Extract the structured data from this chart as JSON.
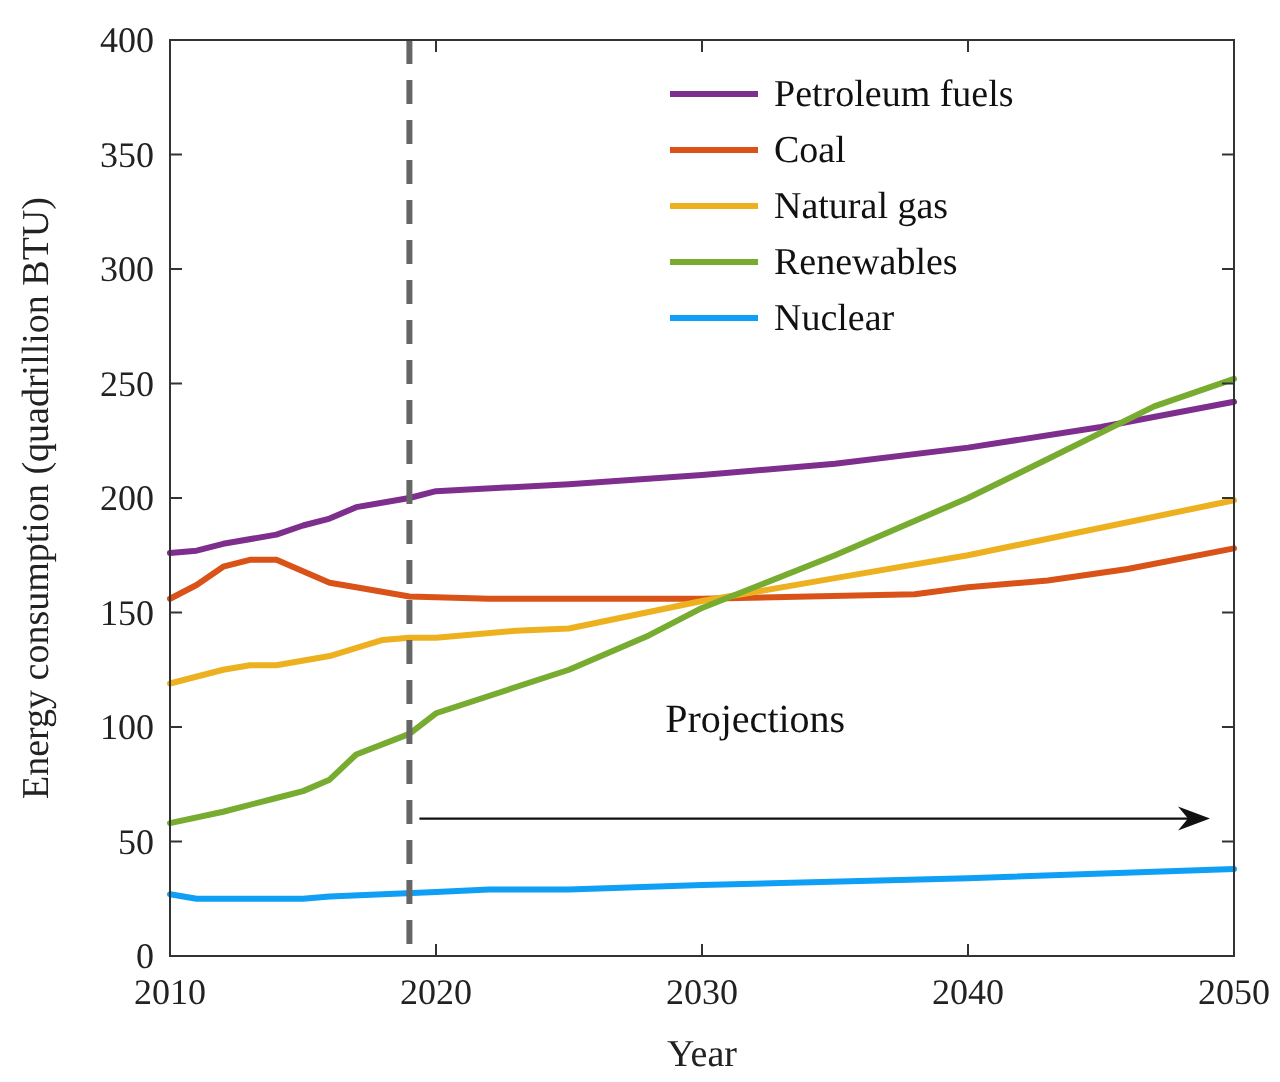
{
  "chart_data": {
    "type": "line",
    "xlabel": "Year",
    "ylabel": "Energy consumption (quadrillion BTU)",
    "xlim": [
      2010,
      2050
    ],
    "xticks": [
      2010,
      2020,
      2030,
      2040,
      2050
    ],
    "ylim": [
      0,
      400
    ],
    "yticks": [
      0,
      50,
      100,
      150,
      200,
      250,
      300,
      350,
      400
    ],
    "grid": false,
    "legend": "top right",
    "marker": "none",
    "line_style": "solid",
    "ref_lines": [
      {
        "axis": "x",
        "value": 2019,
        "color": "#666666",
        "line_style": "dashed"
      }
    ],
    "annotations": [
      "Projections"
    ],
    "series": [
      {
        "name": "Petroleum fuels",
        "color": "#7e2f8e",
        "x": [
          2010,
          2011,
          2012,
          2014,
          2015,
          2016,
          2017,
          2019,
          2020,
          2025,
          2030,
          2035,
          2040,
          2045,
          2050
        ],
        "values": [
          176,
          177,
          180,
          184,
          188,
          191,
          196,
          200,
          203,
          206,
          210,
          215,
          222,
          231,
          242
        ]
      },
      {
        "name": "Coal",
        "color": "#d95319",
        "x": [
          2010,
          2011,
          2012,
          2013,
          2014,
          2016,
          2017,
          2019,
          2022,
          2030,
          2038,
          2040,
          2043,
          2046,
          2050
        ],
        "values": [
          156,
          162,
          170,
          173,
          173,
          163,
          161,
          157,
          156,
          156,
          158,
          161,
          164,
          169,
          178
        ]
      },
      {
        "name": "Natural gas",
        "color": "#edb120",
        "x": [
          2010,
          2012,
          2013,
          2014,
          2016,
          2018,
          2019,
          2020,
          2023,
          2025,
          2030,
          2035,
          2040,
          2045,
          2050
        ],
        "values": [
          119,
          125,
          127,
          127,
          131,
          138,
          139,
          139,
          142,
          143,
          155,
          165,
          175,
          187,
          199
        ]
      },
      {
        "name": "Renewables",
        "color": "#77ac30",
        "x": [
          2010,
          2012,
          2014,
          2015,
          2016,
          2017,
          2019,
          2020,
          2025,
          2028,
          2030,
          2035,
          2040,
          2043,
          2047,
          2050
        ],
        "values": [
          58,
          63,
          69,
          72,
          77,
          88,
          97,
          106,
          125,
          140,
          152,
          175,
          200,
          217,
          240,
          252
        ]
      },
      {
        "name": "Nuclear",
        "color": "#0fa0f5",
        "x": [
          2010,
          2011,
          2013,
          2015,
          2016,
          2018,
          2020,
          2022,
          2025,
          2030,
          2040,
          2050
        ],
        "values": [
          27,
          25,
          25,
          25,
          26,
          27,
          28,
          29,
          29,
          31,
          34,
          38
        ]
      }
    ]
  }
}
